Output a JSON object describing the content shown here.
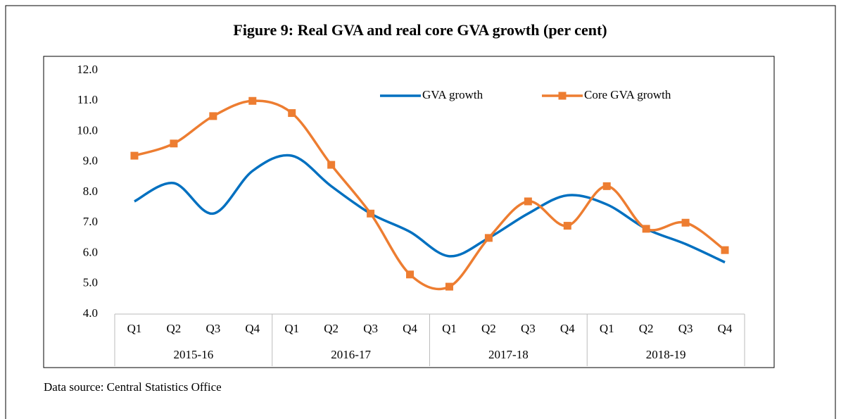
{
  "chart_data": {
    "type": "line",
    "title": "Figure 9: Real GVA and real core GVA growth (per cent)",
    "categories": [
      "Q1",
      "Q2",
      "Q3",
      "Q4",
      "Q1",
      "Q2",
      "Q3",
      "Q4",
      "Q1",
      "Q2",
      "Q3",
      "Q4",
      "Q1",
      "Q2",
      "Q3",
      "Q4"
    ],
    "groups": [
      "2015-16",
      "2016-17",
      "2017-18",
      "2018-19"
    ],
    "series": [
      {
        "name": "GVA growth",
        "color": "#0070c0",
        "values": [
          7.7,
          8.3,
          7.3,
          8.7,
          9.2,
          8.2,
          7.3,
          6.7,
          5.9,
          6.5,
          7.3,
          7.9,
          7.6,
          6.8,
          6.3,
          5.7
        ]
      },
      {
        "name": "Core GVA growth",
        "color": "#ed7d31",
        "marker": "square",
        "values": [
          9.2,
          9.6,
          10.5,
          11.0,
          10.6,
          8.9,
          7.3,
          5.3,
          4.9,
          6.5,
          7.7,
          6.9,
          8.2,
          6.8,
          7.0,
          6.1
        ]
      }
    ],
    "ylim": [
      4,
      12
    ],
    "yticks": [
      {
        "value": 4,
        "label": "4.0"
      },
      {
        "value": 5,
        "label": "5.0"
      },
      {
        "value": 6,
        "label": "6.0"
      },
      {
        "value": 7,
        "label": "7.0"
      },
      {
        "value": 8,
        "label": "8.0"
      },
      {
        "value": 9,
        "label": "9.0"
      },
      {
        "value": 10,
        "label": "10.0"
      },
      {
        "value": 11,
        "label": "11.0"
      },
      {
        "value": 12,
        "label": "12.0"
      }
    ],
    "smooth": true,
    "source": "Data source: Central Statistics Office"
  }
}
